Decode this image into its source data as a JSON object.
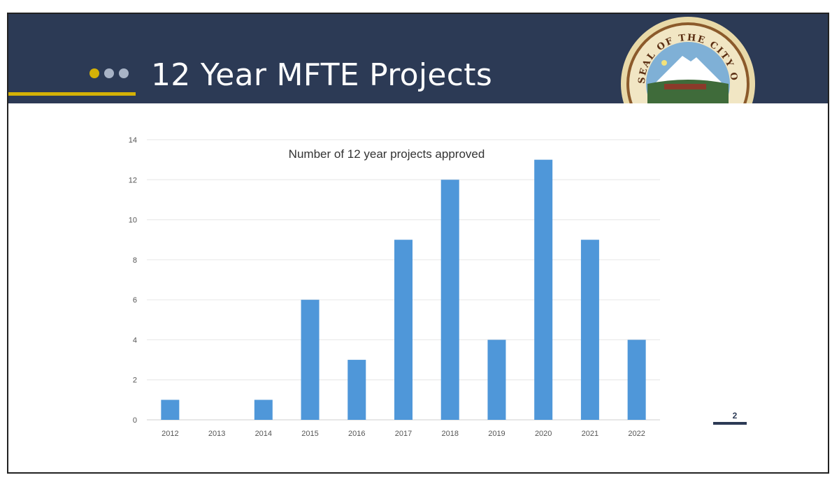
{
  "slide": {
    "title": "12 Year MFTE Projects",
    "page_number": "2",
    "seal_text": "SEAL OF THE CITY OF TACOMA",
    "colors": {
      "header": "#2c3a55",
      "accent": "#d4b106",
      "bar": "#4f97d9"
    }
  },
  "chart_data": {
    "type": "bar",
    "title": "Number of 12 year projects approved",
    "categories": [
      "2012",
      "2013",
      "2014",
      "2015",
      "2016",
      "2017",
      "2018",
      "2019",
      "2020",
      "2021",
      "2022"
    ],
    "values": [
      1,
      0,
      1,
      6,
      3,
      9,
      12,
      4,
      13,
      9,
      4
    ],
    "ylim": [
      0,
      14
    ],
    "yticks": [
      0,
      2,
      4,
      6,
      8,
      10,
      12,
      14
    ],
    "xlabel": "",
    "ylabel": "",
    "grid": true,
    "legend": "none"
  }
}
